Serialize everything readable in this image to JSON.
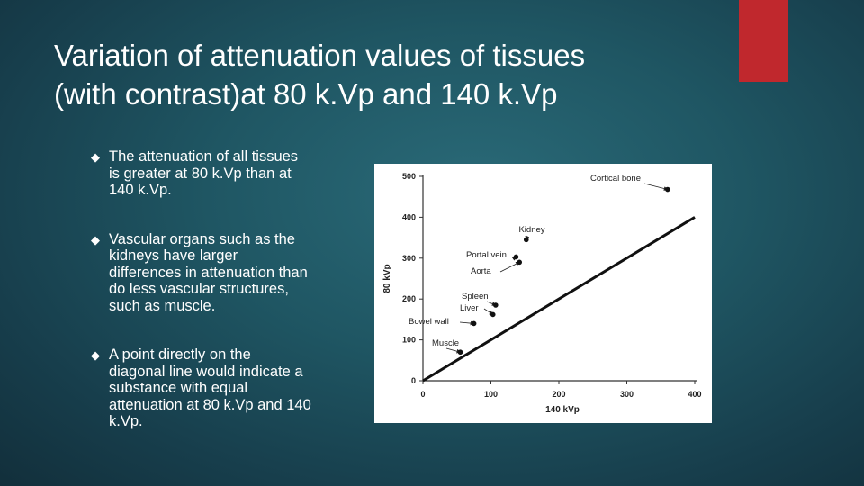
{
  "slide": {
    "title_lines": [
      "Variation of attenuation values of tissues",
      "(with contrast)at 80 k.Vp and 140 k.Vp"
    ],
    "accent_color": "#c0282d",
    "bullets": [
      {
        "icon": "diamond-bullet-icon",
        "lines": [
          "The attenuation of all tissues",
          "is greater at 80 k.Vp than at",
          "140 k.Vp."
        ]
      },
      {
        "icon": "diamond-bullet-icon",
        "lines": [
          "Vascular organs such as the",
          "kidneys have larger",
          "differences in attenuation than",
          "do less vascular structures,",
          "such as muscle."
        ]
      },
      {
        "icon": "diamond-bullet-icon",
        "lines": [
          "A point directly on the",
          "diagonal line would indicate a",
          "substance with equal",
          "attenuation at 80 k.Vp and 140",
          "k.Vp."
        ]
      }
    ]
  },
  "chart_data": {
    "type": "scatter",
    "title": "",
    "xlabel": "140 kVp",
    "ylabel": "80 kVp",
    "xlim": [
      0,
      400
    ],
    "ylim": [
      0,
      500
    ],
    "xticks": [
      0,
      100,
      200,
      300,
      400
    ],
    "yticks": [
      0,
      100,
      200,
      300,
      400,
      500
    ],
    "grid": false,
    "legend": "none",
    "reference_line": {
      "from": [
        0,
        0
      ],
      "to": [
        400,
        400
      ]
    },
    "points": [
      {
        "name": "Cortical bone",
        "x": 360,
        "y": 468
      },
      {
        "name": "Kidney",
        "x": 152,
        "y": 345
      },
      {
        "name": "Portal vein",
        "x": 137,
        "y": 303
      },
      {
        "name": "Aorta",
        "x": 142,
        "y": 290
      },
      {
        "name": "Spleen",
        "x": 107,
        "y": 185
      },
      {
        "name": "Liver",
        "x": 103,
        "y": 162
      },
      {
        "name": "Bowel wall",
        "x": 75,
        "y": 140
      },
      {
        "name": "Muscle",
        "x": 55,
        "y": 70
      }
    ]
  }
}
